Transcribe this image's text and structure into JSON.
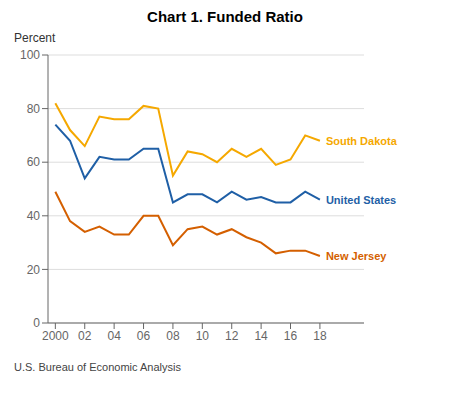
{
  "chart_data": {
    "type": "line",
    "title": "Chart 1. Funded Ratio",
    "ylabel": "Percent",
    "note": "U.S. Bureau of Economic Analysis",
    "x": [
      2000,
      2001,
      2002,
      2003,
      2004,
      2005,
      2006,
      2007,
      2008,
      2009,
      2010,
      2011,
      2012,
      2013,
      2014,
      2015,
      2016,
      2017,
      2018
    ],
    "series": [
      {
        "name": "South Dakota",
        "color": "#F5A800",
        "values": [
          82,
          72,
          66,
          77,
          76,
          76,
          81,
          80,
          55,
          64,
          63,
          60,
          65,
          62,
          65,
          59,
          61,
          70,
          68
        ]
      },
      {
        "name": "United States",
        "color": "#1f5fa6",
        "values": [
          74,
          68,
          54,
          62,
          61,
          61,
          65,
          65,
          45,
          48,
          48,
          45,
          49,
          46,
          47,
          45,
          45,
          49,
          46
        ]
      },
      {
        "name": "New Jersey",
        "color": "#D45F00",
        "values": [
          49,
          38,
          34,
          36,
          33,
          33,
          40,
          40,
          29,
          35,
          36,
          33,
          35,
          32,
          30,
          26,
          27,
          27,
          25
        ]
      }
    ],
    "xlim": [
      1999.5,
      2021
    ],
    "xticks": [
      2000,
      {
        "value": 2002,
        "label": "02"
      },
      {
        "value": 2004,
        "label": "04"
      },
      {
        "value": 2006,
        "label": "06"
      },
      {
        "value": 2008,
        "label": "08"
      },
      {
        "value": 2010,
        "label": "10"
      },
      {
        "value": 2012,
        "label": "12"
      },
      {
        "value": 2014,
        "label": "14"
      },
      {
        "value": 2016,
        "label": "16"
      },
      {
        "value": 2018,
        "label": "18"
      }
    ],
    "ylim": [
      0,
      100
    ],
    "yticks": [
      0,
      20,
      40,
      60,
      80,
      100
    ],
    "grid": true
  }
}
